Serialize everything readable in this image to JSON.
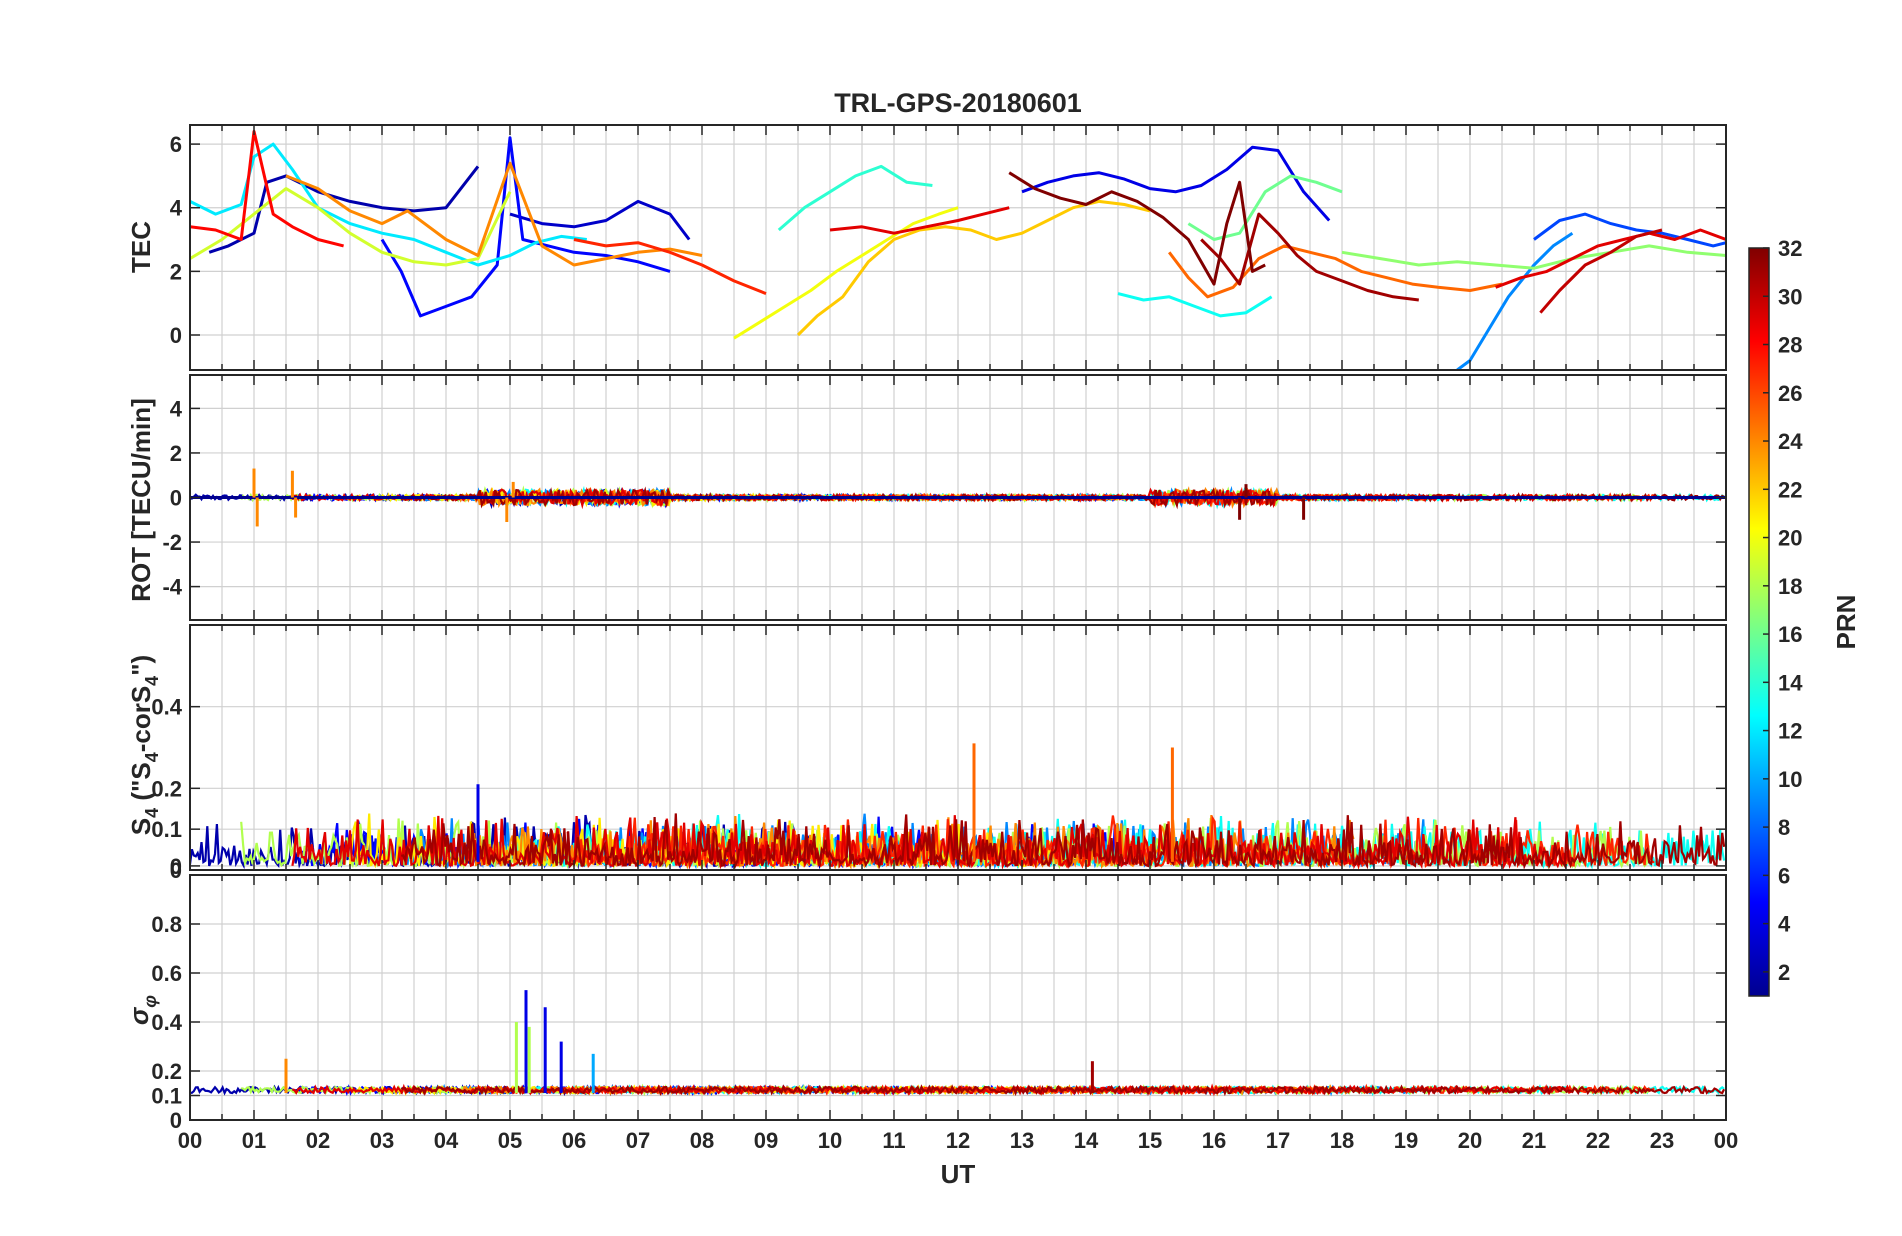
{
  "chart_data": {
    "type": "line",
    "title": "TRL-GPS-20180601",
    "xlabel": "UT",
    "x_ticks": [
      "00",
      "01",
      "02",
      "03",
      "04",
      "05",
      "06",
      "07",
      "08",
      "09",
      "10",
      "11",
      "12",
      "13",
      "14",
      "15",
      "16",
      "17",
      "18",
      "19",
      "20",
      "21",
      "22",
      "23",
      "00"
    ],
    "xlim": [
      0,
      24
    ],
    "grid": true,
    "colorbar": {
      "label": "PRN",
      "range": [
        1,
        32
      ],
      "ticks": [
        "2",
        "4",
        "6",
        "8",
        "10",
        "12",
        "14",
        "16",
        "18",
        "20",
        "22",
        "24",
        "26",
        "28",
        "30",
        "32"
      ],
      "colormap": "jet",
      "stops": [
        "#00008f",
        "#0000ff",
        "#00ffff",
        "#ffff00",
        "#ff0000",
        "#800000"
      ]
    },
    "panels": [
      {
        "id": "tec",
        "ylabel": "TEC",
        "ylim": [
          -1.1,
          6.6
        ],
        "yticks": [
          "0",
          "2",
          "4",
          "6"
        ],
        "ytick_values": [
          0,
          2,
          4,
          6
        ],
        "series": [
          {
            "prn": 2,
            "x": [
              0.3,
              0.6,
              1.0,
              1.2,
              1.5,
              2.0,
              2.5,
              3.0,
              3.5,
              4.0,
              4.5
            ],
            "y": [
              2.6,
              2.8,
              3.2,
              4.8,
              5.0,
              4.5,
              4.2,
              4.0,
              3.9,
              4.0,
              5.3
            ]
          },
          {
            "prn": 3,
            "x": [
              5.0,
              5.5,
              6.0,
              6.5,
              7.0,
              7.5,
              7.8
            ],
            "y": [
              3.8,
              3.5,
              3.4,
              3.6,
              4.2,
              3.8,
              3.0
            ]
          },
          {
            "prn": 5,
            "x": [
              3.0,
              3.3,
              3.6,
              4.0,
              4.4,
              4.8,
              5.0,
              5.2,
              5.6,
              6.0,
              6.5,
              7.0,
              7.5
            ],
            "y": [
              3.0,
              2.0,
              0.6,
              0.9,
              1.2,
              2.2,
              6.2,
              3.0,
              2.8,
              2.6,
              2.5,
              2.3,
              2.0
            ]
          },
          {
            "prn": 7,
            "x": [
              21.0,
              21.4,
              21.8,
              22.2,
              22.6,
              23.0,
              23.4,
              23.8,
              24.0
            ],
            "y": [
              3.0,
              3.6,
              3.8,
              3.5,
              3.3,
              3.2,
              3.0,
              2.8,
              2.9
            ]
          },
          {
            "prn": 9,
            "x": [
              19.8,
              20.0,
              20.3,
              20.6,
              21.0,
              21.3,
              21.6
            ],
            "y": [
              -1.1,
              -0.8,
              0.2,
              1.2,
              2.2,
              2.8,
              3.2
            ]
          },
          {
            "prn": 4,
            "x": [
              13.0,
              13.4,
              13.8,
              14.2,
              14.6,
              15.0,
              15.4,
              15.8,
              16.2,
              16.6,
              17.0,
              17.4,
              17.8
            ],
            "y": [
              4.5,
              4.8,
              5.0,
              5.1,
              4.9,
              4.6,
              4.5,
              4.7,
              5.2,
              5.9,
              5.8,
              4.5,
              3.6
            ]
          },
          {
            "prn": 13,
            "x": [
              14.5,
              14.9,
              15.3,
              15.7,
              16.1,
              16.5,
              16.9
            ],
            "y": [
              1.3,
              1.1,
              1.2,
              0.9,
              0.6,
              0.7,
              1.2
            ]
          },
          {
            "prn": 14,
            "x": [
              9.2,
              9.6,
              10.0,
              10.4,
              10.8,
              11.2,
              11.6
            ],
            "y": [
              3.3,
              4.0,
              4.5,
              5.0,
              5.3,
              4.8,
              4.7
            ]
          },
          {
            "prn": 12,
            "x": [
              0.0,
              0.4,
              0.8,
              1.0,
              1.3,
              1.6,
              2.0,
              2.5,
              3.0,
              3.5,
              4.0,
              4.5,
              5.0,
              5.4,
              5.8,
              6.2
            ],
            "y": [
              4.2,
              3.8,
              4.1,
              5.6,
              6.0,
              5.2,
              4.0,
              3.5,
              3.2,
              3.0,
              2.6,
              2.2,
              2.5,
              2.9,
              3.1,
              3.0
            ]
          },
          {
            "prn": 16,
            "x": [
              15.6,
              16.0,
              16.4,
              16.8,
              17.2,
              17.6,
              18.0
            ],
            "y": [
              3.5,
              3.0,
              3.2,
              4.5,
              5.0,
              4.8,
              4.5
            ]
          },
          {
            "prn": 17,
            "x": [
              18.0,
              18.6,
              19.2,
              19.8,
              20.4,
              21.0,
              21.6,
              22.2,
              22.8,
              23.4,
              24.0
            ],
            "y": [
              2.6,
              2.4,
              2.2,
              2.3,
              2.2,
              2.1,
              2.4,
              2.6,
              2.8,
              2.6,
              2.5
            ]
          },
          {
            "prn": 19,
            "x": [
              0.0,
              0.5,
              1.0,
              1.5,
              2.0,
              2.5,
              3.0,
              3.5,
              4.0,
              4.5,
              5.0
            ],
            "y": [
              2.4,
              3.0,
              3.8,
              4.6,
              4.0,
              3.2,
              2.6,
              2.3,
              2.2,
              2.4,
              4.5
            ]
          },
          {
            "prn": 20,
            "x": [
              8.5,
              8.9,
              9.3,
              9.7,
              10.1,
              10.5,
              10.9,
              11.3,
              11.7,
              12.0
            ],
            "y": [
              -0.1,
              0.4,
              0.9,
              1.4,
              2.0,
              2.5,
              3.0,
              3.5,
              3.8,
              4.0
            ]
          },
          {
            "prn": 22,
            "x": [
              9.5,
              9.8,
              10.2,
              10.6,
              11.0,
              11.4,
              11.8,
              12.2,
              12.6,
              13.0,
              13.4,
              13.8,
              14.2,
              14.6,
              15.0
            ],
            "y": [
              0.0,
              0.6,
              1.2,
              2.3,
              3.0,
              3.3,
              3.4,
              3.3,
              3.0,
              3.2,
              3.6,
              4.0,
              4.2,
              4.1,
              3.9
            ]
          },
          {
            "prn": 24,
            "x": [
              1.5,
              2.0,
              2.5,
              3.0,
              3.4,
              4.0,
              4.5,
              5.0,
              5.5,
              6.0,
              6.5,
              7.0,
              7.5,
              8.0
            ],
            "y": [
              5.0,
              4.6,
              3.9,
              3.5,
              3.9,
              3.0,
              2.5,
              5.4,
              2.8,
              2.2,
              2.4,
              2.6,
              2.7,
              2.5
            ]
          },
          {
            "prn": 25,
            "x": [
              15.3,
              15.6,
              15.9,
              16.3,
              16.7,
              17.1,
              17.5,
              17.9,
              18.3,
              18.7,
              19.1,
              19.5,
              20.0,
              20.5
            ],
            "y": [
              2.6,
              1.8,
              1.2,
              1.5,
              2.4,
              2.8,
              2.6,
              2.4,
              2.0,
              1.8,
              1.6,
              1.5,
              1.4,
              1.6
            ]
          },
          {
            "prn": 27,
            "x": [
              6.0,
              6.5,
              7.0,
              7.5,
              8.0,
              8.5,
              9.0
            ],
            "y": [
              3.0,
              2.8,
              2.9,
              2.6,
              2.2,
              1.7,
              1.3
            ]
          },
          {
            "prn": 28,
            "x": [
              0.0,
              0.4,
              0.8,
              1.0,
              1.3,
              1.6,
              2.0,
              2.4
            ],
            "y": [
              3.4,
              3.3,
              3.0,
              6.4,
              3.8,
              3.4,
              3.0,
              2.8
            ]
          },
          {
            "prn": 29,
            "x": [
              10.0,
              10.5,
              11.0,
              11.5,
              12.0,
              12.4,
              12.8
            ],
            "y": [
              3.3,
              3.4,
              3.2,
              3.4,
              3.6,
              3.8,
              4.0
            ]
          },
          {
            "prn": 29,
            "x": [
              20.4,
              20.8,
              21.2,
              21.6,
              22.0,
              22.4,
              22.8,
              23.2,
              23.6,
              24.0
            ],
            "y": [
              1.5,
              1.8,
              2.0,
              2.4,
              2.8,
              3.0,
              3.2,
              3.0,
              3.3,
              3.0
            ]
          },
          {
            "prn": 30,
            "x": [
              21.1,
              21.4,
              21.8,
              22.2,
              22.6,
              23.0
            ],
            "y": [
              0.7,
              1.4,
              2.2,
              2.6,
              3.1,
              3.3
            ]
          },
          {
            "prn": 31,
            "x": [
              15.8,
              16.1,
              16.4,
              16.7,
              17.0,
              17.3,
              17.6,
              18.0,
              18.4,
              18.8,
              19.2
            ],
            "y": [
              3.0,
              2.4,
              1.6,
              3.8,
              3.2,
              2.5,
              2.0,
              1.7,
              1.4,
              1.2,
              1.1
            ]
          },
          {
            "prn": 32,
            "x": [
              12.8,
              13.2,
              13.6,
              14.0,
              14.4,
              14.8,
              15.2,
              15.6,
              16.0,
              16.2,
              16.4,
              16.6,
              16.8
            ],
            "y": [
              5.1,
              4.6,
              4.3,
              4.1,
              4.5,
              4.2,
              3.7,
              3.0,
              1.6,
              3.5,
              4.8,
              2.0,
              2.2
            ]
          }
        ]
      },
      {
        "id": "rot",
        "ylabel": "ROT [TECU/min]",
        "ylim": [
          -5.5,
          5.5
        ],
        "yticks": [
          "-4",
          "-2",
          "0",
          "2",
          "4"
        ],
        "ytick_values": [
          -4,
          -2,
          0,
          2,
          4
        ],
        "series": [
          {
            "prn": 1,
            "x": [
              0.0,
              24.0
            ],
            "y": [
              0.0,
              0.0
            ]
          },
          {
            "prn": 24,
            "x": [
              1.0,
              1.05,
              1.6,
              1.65,
              4.95,
              5.05
            ],
            "y": [
              1.3,
              -1.3,
              1.2,
              -0.9,
              -1.1,
              0.7
            ]
          },
          {
            "prn": 32,
            "x": [
              16.4,
              16.5,
              17.4
            ],
            "y": [
              -1.0,
              0.6,
              -1.0
            ]
          }
        ]
      },
      {
        "id": "s4",
        "ylabel": "S_4 (\"S_4-corS_4\")",
        "ylim": [
          0,
          0.6
        ],
        "yticks": [
          "0",
          "0",
          "0.1",
          "0.2",
          "0.4"
        ],
        "ytick_values": [
          0,
          0.01,
          0.1,
          0.2,
          0.4
        ],
        "series": [
          {
            "prn": 25,
            "x": [
              12.25,
              15.35
            ],
            "y": [
              0.31,
              0.3
            ]
          },
          {
            "prn": 4,
            "x": [
              4.5
            ],
            "y": [
              0.21
            ]
          }
        ]
      },
      {
        "id": "sigphi",
        "ylabel": "σ_φ",
        "ylim": [
          0,
          1.0
        ],
        "yticks": [
          "0",
          "0.1",
          "0.2",
          "0.4",
          "0.6",
          "0.8"
        ],
        "ytick_values": [
          0,
          0.1,
          0.2,
          0.4,
          0.6,
          0.8
        ],
        "series": [
          {
            "prn": 4,
            "x": [
              5.25,
              5.55,
              5.8
            ],
            "y": [
              0.53,
              0.46,
              0.32
            ]
          },
          {
            "prn": 18,
            "x": [
              5.1,
              5.3
            ],
            "y": [
              0.4,
              0.38
            ]
          },
          {
            "prn": 10,
            "x": [
              6.3
            ],
            "y": [
              0.27
            ]
          },
          {
            "prn": 24,
            "x": [
              1.5
            ],
            "y": [
              0.25
            ]
          },
          {
            "prn": 31,
            "x": [
              14.1
            ],
            "y": [
              0.24
            ]
          }
        ]
      }
    ]
  }
}
